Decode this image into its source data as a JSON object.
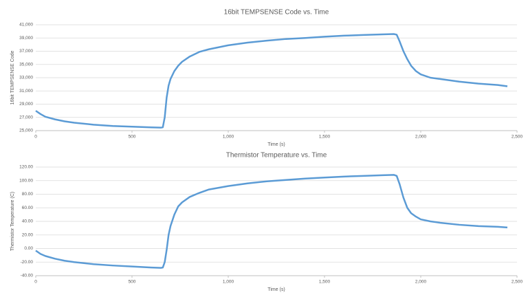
{
  "chart_data": [
    {
      "type": "line",
      "title": "16bit TEMPSENSE Code vs. Time",
      "x_label": "Time (s)",
      "y_label": "16bit TEMPSENSE Code",
      "xlim": [
        0,
        2500
      ],
      "xticks": [
        0,
        500,
        {
          "value": 1000,
          "label": "1,000"
        },
        {
          "value": 1500,
          "label": "1,500"
        },
        {
          "value": 2000,
          "label": "2,000"
        },
        {
          "value": 2500,
          "label": "2,500"
        }
      ],
      "ylim": [
        25000,
        41000
      ],
      "yticks": [
        {
          "value": 25000,
          "label": "25,000"
        },
        {
          "value": 27000,
          "label": "27,000"
        },
        {
          "value": 29000,
          "label": "29,000"
        },
        {
          "value": 31000,
          "label": "31,000"
        },
        {
          "value": 33000,
          "label": "33,000"
        },
        {
          "value": 35000,
          "label": "35,000"
        },
        {
          "value": 37000,
          "label": "37,000"
        },
        {
          "value": 39000,
          "label": "39,000"
        },
        {
          "value": 41000,
          "label": "41,000"
        }
      ],
      "grid": true,
      "x": [
        0,
        25,
        50,
        100,
        150,
        200,
        300,
        400,
        500,
        600,
        650,
        660,
        670,
        680,
        690,
        700,
        720,
        740,
        760,
        800,
        850,
        900,
        1000,
        1100,
        1200,
        1300,
        1400,
        1500,
        1600,
        1700,
        1800,
        1860,
        1875,
        1890,
        1910,
        1930,
        1950,
        1975,
        2000,
        2050,
        2100,
        2200,
        2300,
        2400,
        2450
      ],
      "series": [
        {
          "color": "#5b9bd5",
          "values": [
            28000,
            27500,
            27100,
            26700,
            26400,
            26200,
            25900,
            25700,
            25600,
            25500,
            25450,
            25500,
            27000,
            30000,
            31800,
            32800,
            34000,
            34800,
            35400,
            36200,
            36900,
            37300,
            37900,
            38300,
            38600,
            38850,
            39000,
            39200,
            39350,
            39450,
            39550,
            39600,
            39500,
            38500,
            37000,
            35800,
            34800,
            34000,
            33500,
            33000,
            32800,
            32400,
            32100,
            31900,
            31700
          ]
        }
      ]
    },
    {
      "type": "line",
      "title": "Thermistor Temperature vs. Time",
      "x_label": "Time (s)",
      "y_label": "Thermistor Temperature (C)",
      "xlim": [
        0,
        2500
      ],
      "xticks": [
        0,
        500,
        {
          "value": 1000,
          "label": "1,000"
        },
        {
          "value": 1500,
          "label": "1,500"
        },
        {
          "value": 2000,
          "label": "2,000"
        },
        {
          "value": 2500,
          "label": "2,500"
        }
      ],
      "ylim": [
        -40,
        120
      ],
      "yticks": [
        {
          "value": -40,
          "label": "-40.00"
        },
        {
          "value": -20,
          "label": "-20.00"
        },
        {
          "value": 0,
          "label": "0.00"
        },
        {
          "value": 20,
          "label": "20.00"
        },
        {
          "value": 40,
          "label": "40.00"
        },
        {
          "value": 60,
          "label": "60.00"
        },
        {
          "value": 80,
          "label": "80.00"
        },
        {
          "value": 100,
          "label": "100.00"
        },
        {
          "value": 120,
          "label": "120.00"
        }
      ],
      "grid": true,
      "x": [
        0,
        25,
        50,
        100,
        150,
        200,
        300,
        400,
        500,
        600,
        650,
        660,
        670,
        680,
        690,
        700,
        720,
        740,
        760,
        800,
        850,
        900,
        1000,
        1100,
        1200,
        1300,
        1400,
        1500,
        1600,
        1700,
        1800,
        1860,
        1875,
        1890,
        1910,
        1930,
        1950,
        1975,
        2000,
        2050,
        2100,
        2200,
        2300,
        2400,
        2450
      ],
      "series": [
        {
          "color": "#5b9bd5",
          "values": [
            -3,
            -8,
            -11,
            -15,
            -18,
            -20,
            -23,
            -25,
            -26.5,
            -28,
            -28.5,
            -28,
            -20,
            -2,
            20,
            33,
            50,
            62,
            68,
            76,
            82,
            87,
            92,
            96,
            99,
            101,
            103,
            104.5,
            106,
            107,
            108,
            108.5,
            107,
            95,
            75,
            60,
            52,
            47,
            43,
            40,
            38,
            35,
            33,
            32,
            31
          ]
        }
      ]
    }
  ]
}
